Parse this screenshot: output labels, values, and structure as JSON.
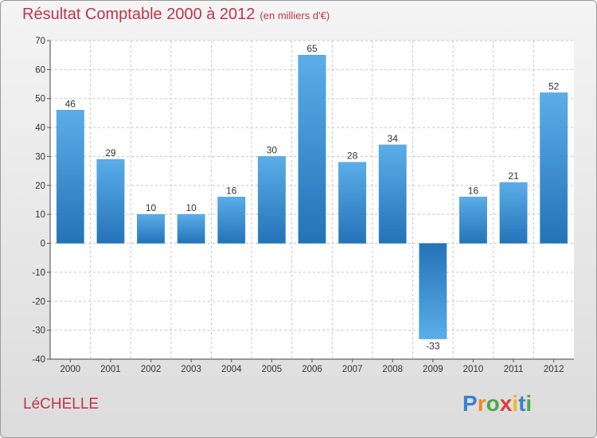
{
  "title": "Résultat Comptable 2000 à 2012",
  "subtitle": "(en milliers d'€)",
  "commune": "LéCHELLE",
  "logo": {
    "letters": [
      "P",
      "r",
      "o",
      "x",
      "i",
      "t",
      "i"
    ],
    "colors": [
      "#3a7fd0",
      "#f08a1e",
      "#4aa84a",
      "#e03b3b",
      "#f0b81e",
      "#3a7fd0",
      "#4aa84a"
    ]
  },
  "colors": {
    "bar_top": "#5aaee8",
    "bar_bottom": "#2572b8",
    "title": "#c2344a"
  },
  "chart_data": {
    "type": "bar",
    "title": "Résultat Comptable 2000 à 2012",
    "subtitle": "(en milliers d'€)",
    "categories": [
      "2000",
      "2001",
      "2002",
      "2003",
      "2004",
      "2005",
      "2006",
      "2007",
      "2008",
      "2009",
      "2010",
      "2011",
      "2012"
    ],
    "values": [
      46,
      29,
      10,
      10,
      16,
      30,
      65,
      28,
      34,
      -33,
      16,
      21,
      52
    ],
    "ylim": [
      -40,
      70
    ],
    "yticks": [
      70,
      60,
      50,
      40,
      30,
      20,
      10,
      0,
      -10,
      -20,
      -30,
      -40
    ],
    "ytick_labels": [
      "70",
      "60",
      "50",
      "40",
      "30",
      "20",
      "10",
      "0",
      "-10",
      "-20",
      "-30",
      "-40"
    ],
    "xlabel": "",
    "ylabel": "",
    "grid": true
  }
}
